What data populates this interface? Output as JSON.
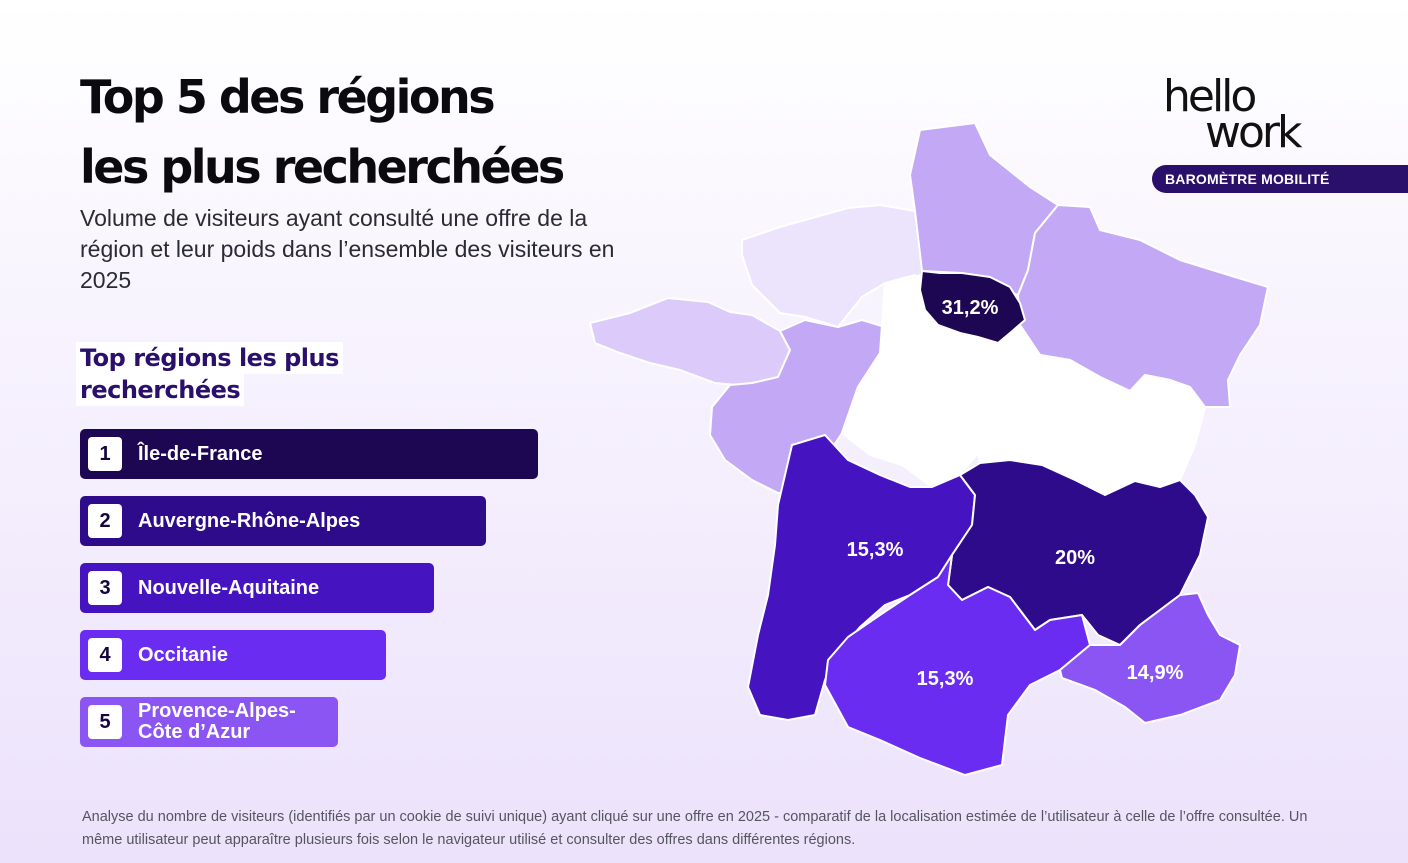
{
  "title": {
    "line1": "Top 5 des régions",
    "line2": "les plus recherchées"
  },
  "subtitle": "Volume de visiteurs ayant consulté une offre de la région et leur poids dans l’ensemble des visiteurs en 2025",
  "list_heading": {
    "line1": "Top régions les plus",
    "line2": "recherchées"
  },
  "ranking": [
    {
      "rank": "1",
      "name": "Île-de-France",
      "color": "#1e0752"
    },
    {
      "rank": "2",
      "name": "Auvergne-Rhône-Alpes",
      "color": "#2e0b8a"
    },
    {
      "rank": "3",
      "name": "Nouvelle-Aquitaine",
      "color": "#4513c0"
    },
    {
      "rank": "4",
      "name": "Occitanie",
      "color": "#6a2cf0"
    },
    {
      "rank": "5",
      "name": "Provence-Alpes-Côte d’Azur",
      "color": "#8a55f2"
    }
  ],
  "logo": {
    "line1": "hello",
    "line2": "work",
    "icon": "hellowork-logo"
  },
  "badge": "BAROMÈTRE MOBILITÉ",
  "map": {
    "regions": [
      {
        "id": "ile-de-france",
        "value": "31,2%",
        "color": "#1e0752"
      },
      {
        "id": "auvergne-rhone-alpes",
        "value": "20%",
        "color": "#2e0b8a"
      },
      {
        "id": "nouvelle-aquitaine",
        "value": "15,3%",
        "color": "#4513c0"
      },
      {
        "id": "occitanie",
        "value": "15,3%",
        "color": "#6a2cf0"
      },
      {
        "id": "provence-alpes-cote-d-azur",
        "value": "14,9%",
        "color": "#8a55f2"
      },
      {
        "id": "hauts-de-france",
        "color": "#c3a9f5"
      },
      {
        "id": "grand-est",
        "color": "#c3a9f5"
      },
      {
        "id": "pays-de-la-loire",
        "color": "#c3a9f5"
      },
      {
        "id": "bretagne",
        "color": "#dccbfa"
      },
      {
        "id": "normandie",
        "color": "#ece4fc"
      },
      {
        "id": "centre-val-de-loire",
        "color": "#ffffff"
      },
      {
        "id": "bourgogne-franche-comte",
        "color": "#ffffff"
      }
    ]
  },
  "footnote": "Analyse du nombre de visiteurs (identifiés par un cookie de suivi unique) ayant cliqué sur une offre en 2025 - comparatif de la localisation estimée de l’utilisateur à celle de l’offre consultée. Un même utilisateur peut apparaître plusieurs fois selon le navigateur utilisé et consulter des offres dans différentes régions."
}
